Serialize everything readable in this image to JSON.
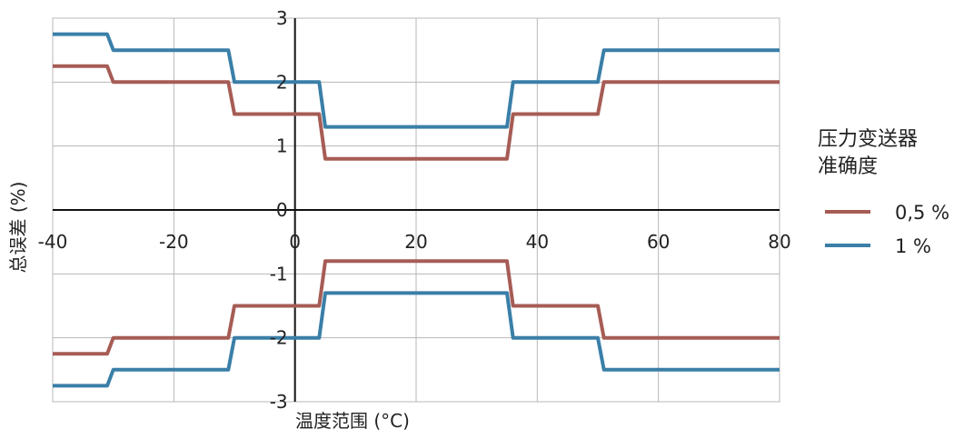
{
  "chart_data": {
    "type": "line",
    "title": "",
    "xlabel": "温度范围 (°C)",
    "ylabel": "总误差 (%)",
    "xlim": [
      -40,
      80
    ],
    "ylim": [
      -3,
      3
    ],
    "x_ticks": [
      -40,
      -20,
      0,
      20,
      40,
      60,
      80
    ],
    "y_ticks": [
      -3,
      -2,
      -1,
      0,
      1,
      2,
      3
    ],
    "x_tick_labels": [
      "-40",
      "-20",
      "0",
      "20",
      "40",
      "60",
      "80"
    ],
    "y_tick_labels": [
      "-3",
      "-2",
      "-1",
      "0",
      "1",
      "2",
      "3"
    ],
    "grid": true,
    "legend": {
      "title": "压力变送器\n准确度",
      "placement": "right"
    },
    "series": [
      {
        "name": "0,5 %",
        "color": "#a65c55",
        "upper": {
          "x": [
            -40,
            -31,
            -30,
            -11,
            -10,
            4,
            5,
            35,
            36,
            50,
            51,
            80
          ],
          "y": [
            2.25,
            2.25,
            2.0,
            2.0,
            1.5,
            1.5,
            0.8,
            0.8,
            1.5,
            1.5,
            2.0,
            2.0
          ]
        },
        "lower": {
          "x": [
            -40,
            -31,
            -30,
            -11,
            -10,
            4,
            5,
            35,
            36,
            50,
            51,
            80
          ],
          "y": [
            -2.25,
            -2.25,
            -2.0,
            -2.0,
            -1.5,
            -1.5,
            -0.8,
            -0.8,
            -1.5,
            -1.5,
            -2.0,
            -2.0
          ]
        }
      },
      {
        "name": "1 %",
        "color": "#3a7fa8",
        "upper": {
          "x": [
            -40,
            -31,
            -30,
            -11,
            -10,
            4,
            5,
            35,
            36,
            50,
            51,
            80
          ],
          "y": [
            2.75,
            2.75,
            2.5,
            2.5,
            2.0,
            2.0,
            1.3,
            1.3,
            2.0,
            2.0,
            2.5,
            2.5
          ]
        },
        "lower": {
          "x": [
            -40,
            -31,
            -30,
            -11,
            -10,
            4,
            5,
            35,
            36,
            50,
            51,
            80
          ],
          "y": [
            -2.75,
            -2.75,
            -2.5,
            -2.5,
            -2.0,
            -2.0,
            -1.3,
            -1.3,
            -2.0,
            -2.0,
            -2.5,
            -2.5
          ]
        }
      }
    ]
  }
}
